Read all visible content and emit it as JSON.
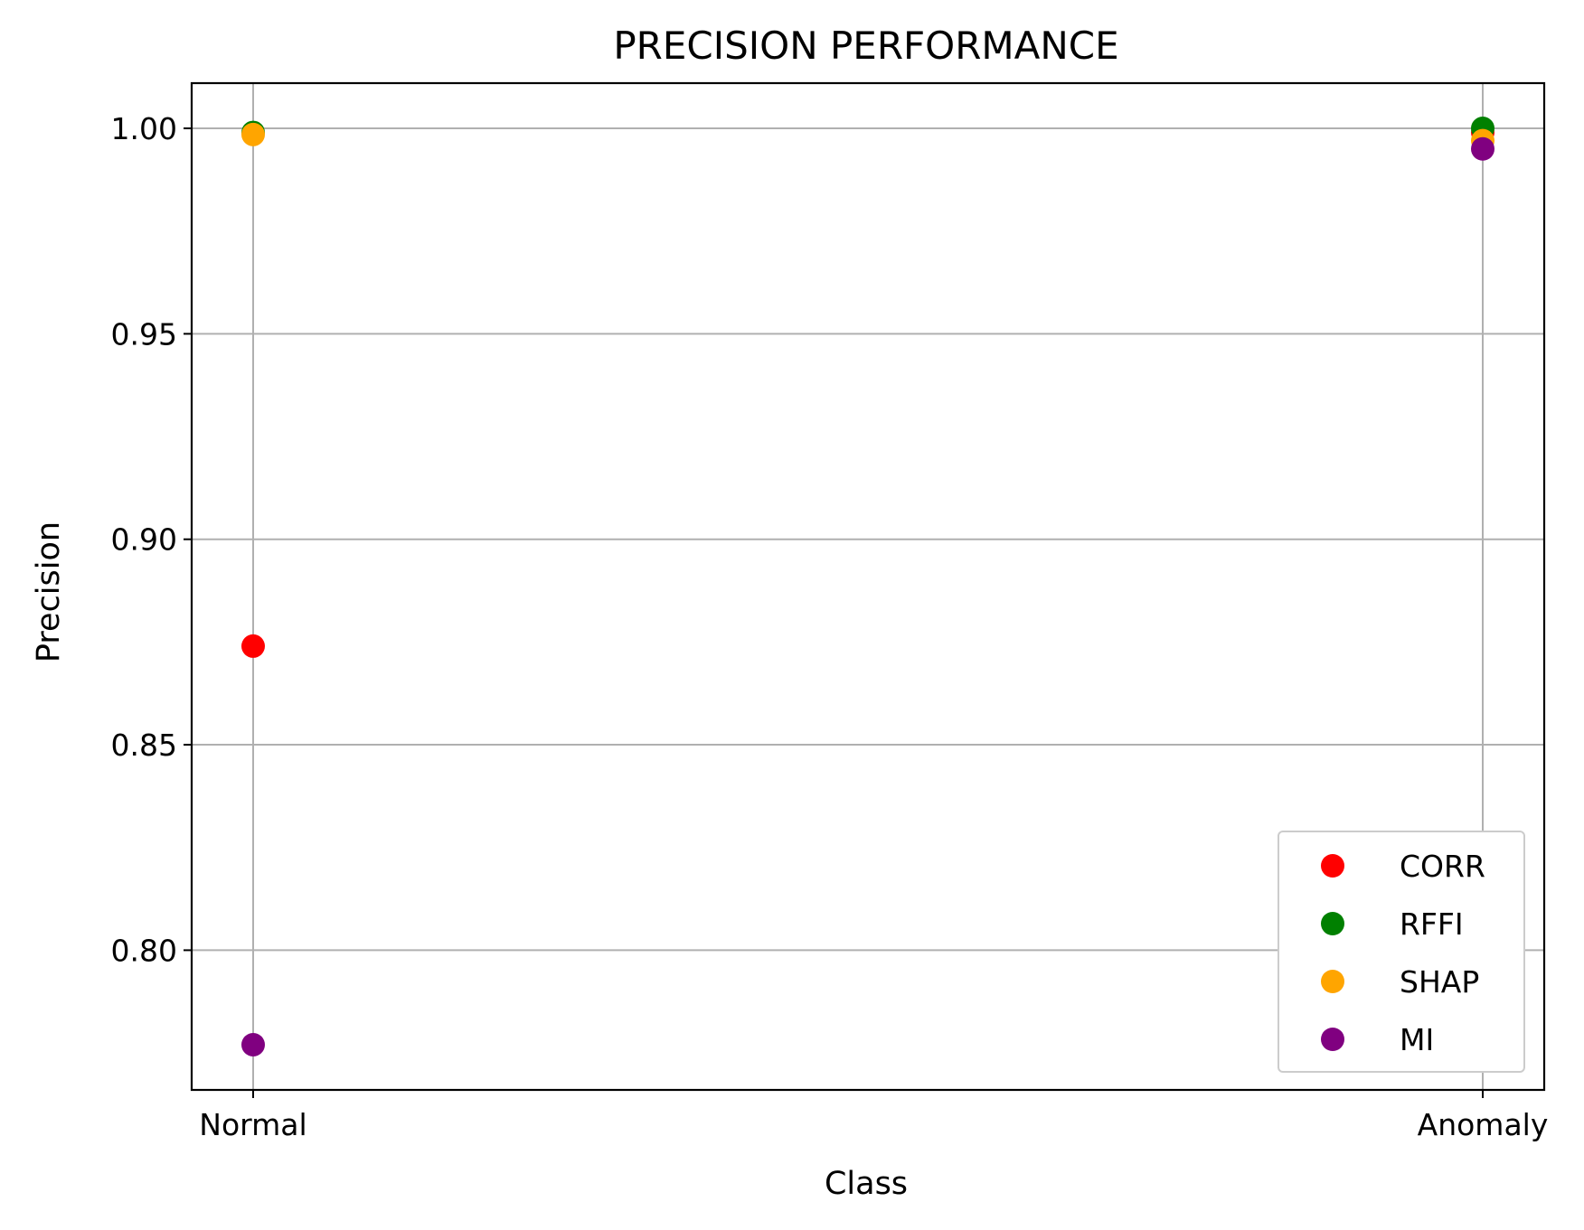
{
  "chart_data": {
    "type": "scatter",
    "title": "PRECISION PERFORMANCE",
    "xlabel": "Class",
    "ylabel": "Precision",
    "categories": [
      "Normal",
      "Anomaly"
    ],
    "ylim": [
      0.766,
      1.011
    ],
    "yticks": [
      "0.80",
      "0.85",
      "0.90",
      "0.95",
      "1.00"
    ],
    "grid": true,
    "legend_position": "lower right",
    "series": [
      {
        "name": "CORR",
        "color": "#ff0000",
        "values": [
          0.874,
          0.999
        ]
      },
      {
        "name": "RFFI",
        "color": "#008000",
        "values": [
          0.999,
          1.0
        ]
      },
      {
        "name": "SHAP",
        "color": "#ffa500",
        "values": [
          0.9985,
          0.997
        ]
      },
      {
        "name": "MI",
        "color": "#800080",
        "values": [
          0.777,
          0.995
        ]
      }
    ]
  }
}
